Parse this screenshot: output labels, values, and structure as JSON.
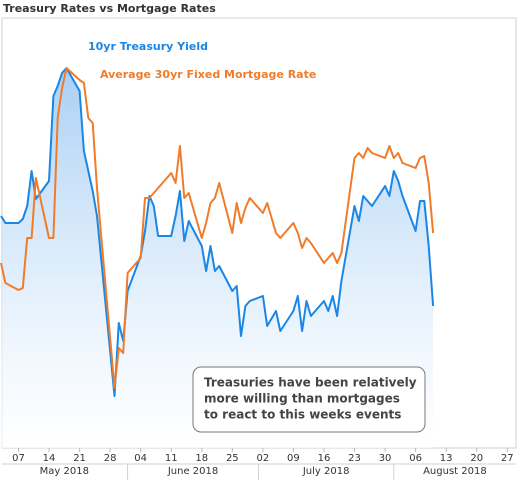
{
  "chart_data": {
    "type": "line",
    "title": "Treasury Rates vs Mortgage Rates",
    "x": [
      "2018-05-03",
      "2018-05-04",
      "2018-05-07",
      "2018-05-08",
      "2018-05-09",
      "2018-05-10",
      "2018-05-11",
      "2018-05-14",
      "2018-05-15",
      "2018-05-16",
      "2018-05-17",
      "2018-05-18",
      "2018-05-21",
      "2018-05-22",
      "2018-05-23",
      "2018-05-24",
      "2018-05-25",
      "2018-05-29",
      "2018-05-30",
      "2018-05-31",
      "2018-06-01",
      "2018-06-04",
      "2018-06-05",
      "2018-06-06",
      "2018-06-07",
      "2018-06-08",
      "2018-06-11",
      "2018-06-12",
      "2018-06-13",
      "2018-06-14",
      "2018-06-15",
      "2018-06-18",
      "2018-06-19",
      "2018-06-20",
      "2018-06-21",
      "2018-06-22",
      "2018-06-25",
      "2018-06-26",
      "2018-06-27",
      "2018-06-28",
      "2018-06-29",
      "2018-07-02",
      "2018-07-03",
      "2018-07-05",
      "2018-07-06",
      "2018-07-09",
      "2018-07-10",
      "2018-07-11",
      "2018-07-12",
      "2018-07-13",
      "2018-07-16",
      "2018-07-17",
      "2018-07-18",
      "2018-07-19",
      "2018-07-20",
      "2018-07-23",
      "2018-07-24",
      "2018-07-25",
      "2018-07-26",
      "2018-07-27",
      "2018-07-30",
      "2018-07-31",
      "2018-08-01",
      "2018-08-02",
      "2018-08-03",
      "2018-08-06",
      "2018-08-07",
      "2018-08-08",
      "2018-08-09",
      "2018-08-10"
    ],
    "series": [
      {
        "name": "10yr Treasury Yield",
        "color": "#1a86e6",
        "area": true,
        "values": [
          2.962,
          2.955,
          2.955,
          2.959,
          2.972,
          3.007,
          2.979,
          2.997,
          3.082,
          3.092,
          3.105,
          3.11,
          3.087,
          3.027,
          3.007,
          2.987,
          2.962,
          2.782,
          2.855,
          2.837,
          2.887,
          2.922,
          2.947,
          2.982,
          2.972,
          2.942,
          2.942,
          2.962,
          2.987,
          2.937,
          2.957,
          2.932,
          2.907,
          2.932,
          2.907,
          2.912,
          2.887,
          2.892,
          2.842,
          2.872,
          2.877,
          2.882,
          2.852,
          2.867,
          2.847,
          2.867,
          2.882,
          2.847,
          2.877,
          2.862,
          2.877,
          2.867,
          2.882,
          2.862,
          2.897,
          2.972,
          2.957,
          2.982,
          2.977,
          2.972,
          2.992,
          2.982,
          3.007,
          2.997,
          2.982,
          2.947,
          2.977,
          2.977,
          2.932,
          2.872
        ]
      },
      {
        "name": "Average 30yr Fixed Mortgage Rate",
        "color": "#f07c2a",
        "axis": "y2",
        "values": [
          4.705,
          4.685,
          4.678,
          4.68,
          4.73,
          4.73,
          4.79,
          4.73,
          4.73,
          4.85,
          4.88,
          4.9,
          4.888,
          4.885,
          4.85,
          4.845,
          4.78,
          4.58,
          4.62,
          4.615,
          4.695,
          4.71,
          4.77,
          4.77,
          4.775,
          4.78,
          4.795,
          4.785,
          4.822,
          4.77,
          4.775,
          4.73,
          4.745,
          4.765,
          4.77,
          4.785,
          4.735,
          4.765,
          4.745,
          4.76,
          4.77,
          4.755,
          4.765,
          4.735,
          4.73,
          4.745,
          4.735,
          4.72,
          4.73,
          4.725,
          4.705,
          4.71,
          4.715,
          4.705,
          4.715,
          4.81,
          4.815,
          4.81,
          4.82,
          4.815,
          4.81,
          4.822,
          4.81,
          4.815,
          4.805,
          4.8,
          4.81,
          4.812,
          4.785,
          4.735
        ]
      }
    ],
    "xlim": [
      "2018-05-03",
      "2018-08-29"
    ],
    "xticks": [
      {
        "value": "2018-05-07",
        "label": "07"
      },
      {
        "value": "2018-05-14",
        "label": "14"
      },
      {
        "value": "2018-05-21",
        "label": "21"
      },
      {
        "value": "2018-05-28",
        "label": "28"
      },
      {
        "value": "2018-06-04",
        "label": "04"
      },
      {
        "value": "2018-06-11",
        "label": "11"
      },
      {
        "value": "2018-06-18",
        "label": "18"
      },
      {
        "value": "2018-06-25",
        "label": "25"
      },
      {
        "value": "2018-07-02",
        "label": "02"
      },
      {
        "value": "2018-07-09",
        "label": "09"
      },
      {
        "value": "2018-07-16",
        "label": "16"
      },
      {
        "value": "2018-07-23",
        "label": "23"
      },
      {
        "value": "2018-07-30",
        "label": "30"
      },
      {
        "value": "2018-08-06",
        "label": "06"
      },
      {
        "value": "2018-08-13",
        "label": "13"
      },
      {
        "value": "2018-08-20",
        "label": "20"
      },
      {
        "value": "2018-08-27",
        "label": "27"
      }
    ],
    "months": [
      {
        "value": "2018-05",
        "label": "May 2018"
      },
      {
        "value": "2018-06",
        "label": "June 2018"
      },
      {
        "value": "2018-07",
        "label": "July 2018"
      },
      {
        "value": "2018-08",
        "label": "August 2018"
      }
    ],
    "ylim": [
      2.73,
      3.16
    ],
    "y2lim": [
      4.52,
      4.95
    ],
    "annotation": [
      "Treasuries have been relatively",
      "more willing than mortgages",
      "to react to this weeks events"
    ]
  }
}
